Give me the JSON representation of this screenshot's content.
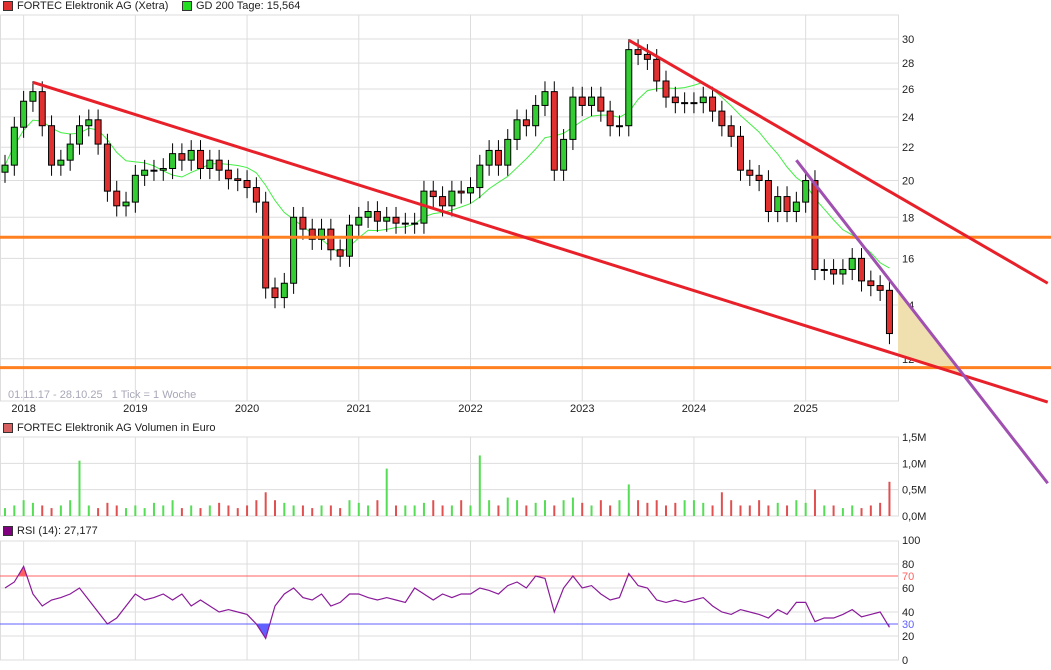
{
  "legend": {
    "price_label": "FORTEC Elektronik AG (Xetra)",
    "price_color": "#e03030",
    "ma_label": "GD 200 Tage: 15,564",
    "ma_color": "#22dd22",
    "volume_label": "FORTEC Elektronik AG Volumen in Euro",
    "volume_color": "#d86060",
    "rsi_label": "RSI (14): 27,177",
    "rsi_color": "#800080"
  },
  "range_info": "01.11.17 - 28.10.25   1 Tick = 1 Woche",
  "chart_data": [
    {
      "type": "candlestick",
      "scale": "log",
      "ylim": [
        11.5,
        31
      ],
      "grid": true,
      "yticks": [
        12,
        14,
        16,
        18,
        20,
        22,
        24,
        26,
        28,
        30
      ],
      "xtick_labels": [
        "2018",
        "2019",
        "2020",
        "2021",
        "2022",
        "2023",
        "2024",
        "2025"
      ],
      "dates": [
        "2017-11",
        "2017-12",
        "2018-01",
        "2018-02",
        "2018-03",
        "2018-04",
        "2018-05",
        "2018-06",
        "2018-07",
        "2018-08",
        "2018-09",
        "2018-10",
        "2018-11",
        "2018-12",
        "2019-01",
        "2019-02",
        "2019-03",
        "2019-04",
        "2019-05",
        "2019-06",
        "2019-07",
        "2019-08",
        "2019-09",
        "2019-10",
        "2019-11",
        "2019-12",
        "2020-01",
        "2020-02",
        "2020-03",
        "2020-04",
        "2020-05",
        "2020-06",
        "2020-07",
        "2020-08",
        "2020-09",
        "2020-10",
        "2020-11",
        "2020-12",
        "2021-01",
        "2021-02",
        "2021-03",
        "2021-04",
        "2021-05",
        "2021-06",
        "2021-07",
        "2021-08",
        "2021-09",
        "2021-10",
        "2021-11",
        "2021-12",
        "2022-01",
        "2022-02",
        "2022-03",
        "2022-04",
        "2022-05",
        "2022-06",
        "2022-07",
        "2022-08",
        "2022-09",
        "2022-10",
        "2022-11",
        "2022-12",
        "2023-01",
        "2023-02",
        "2023-03",
        "2023-04",
        "2023-05",
        "2023-06",
        "2023-07",
        "2023-08",
        "2023-09",
        "2023-10",
        "2023-11",
        "2023-12",
        "2024-01",
        "2024-02",
        "2024-03",
        "2024-04",
        "2024-05",
        "2024-06",
        "2024-07",
        "2024-08",
        "2024-09",
        "2024-10",
        "2024-11",
        "2024-12",
        "2025-01",
        "2025-02",
        "2025-03",
        "2025-04",
        "2025-05",
        "2025-06",
        "2025-07",
        "2025-08",
        "2025-09",
        "2025-10"
      ],
      "close": [
        20.9,
        23.3,
        25.1,
        25.8,
        23.4,
        20.9,
        21.2,
        22.2,
        23.4,
        23.8,
        22.2,
        19.4,
        18.6,
        18.8,
        20.3,
        20.6,
        20.6,
        20.7,
        21.6,
        21.2,
        21.8,
        20.7,
        21.2,
        20.6,
        20.1,
        20.0,
        19.6,
        18.8,
        14.7,
        14.3,
        14.9,
        18.0,
        17.4,
        16.9,
        17.4,
        16.4,
        16.1,
        17.6,
        18.0,
        18.3,
        17.8,
        18.0,
        17.7,
        17.7,
        17.7,
        19.4,
        19.1,
        18.6,
        19.4,
        19.3,
        19.6,
        20.9,
        21.8,
        20.9,
        22.5,
        23.8,
        23.4,
        24.8,
        25.8,
        20.6,
        22.5,
        25.4,
        24.8,
        25.4,
        24.4,
        23.4,
        23.4,
        29.1,
        28.7,
        28.3,
        26.6,
        25.4,
        25.0,
        25.0,
        25.0,
        25.4,
        24.4,
        23.4,
        22.7,
        20.6,
        20.3,
        20.0,
        18.3,
        19.1,
        18.3,
        18.8,
        20.0,
        15.5,
        15.5,
        15.3,
        15.5,
        16.0,
        15.0,
        14.8,
        14.6,
        12.9
      ],
      "ma_name": "GD 200 Tage",
      "ma_last": 15.564,
      "trendlines": [
        {
          "color": "#e8202a",
          "from": [
            "2018-02",
            26.5
          ],
          "to": [
            "2027-03",
            10.6
          ]
        },
        {
          "color": "#e8202a",
          "from": [
            "2023-06",
            29.9
          ],
          "to": [
            "2027-03",
            14.9
          ]
        },
        {
          "color": "#a050b0",
          "from": [
            "2024-12",
            21.2
          ],
          "to": [
            "2027-03",
            8.4
          ]
        }
      ],
      "horizontal_levels": [
        {
          "color": "#ff8020",
          "value": 17.0
        },
        {
          "color": "#ff8020",
          "value": 11.7
        }
      ],
      "shaded_triangle_color": "#f0e0b0"
    },
    {
      "type": "bar",
      "unit": "M",
      "ylim": [
        0,
        1.5
      ],
      "yticks": [
        "0,0M",
        "0,5M",
        "1,0M",
        "1,5M"
      ],
      "values": [
        0.15,
        0.2,
        0.3,
        0.25,
        0.2,
        0.15,
        0.2,
        0.3,
        1.05,
        0.2,
        0.15,
        0.25,
        0.2,
        0.15,
        0.2,
        0.15,
        0.25,
        0.2,
        0.3,
        0.15,
        0.2,
        0.15,
        0.2,
        0.25,
        0.2,
        0.15,
        0.2,
        0.3,
        0.45,
        0.3,
        0.25,
        0.2,
        0.2,
        0.15,
        0.2,
        0.2,
        0.15,
        0.3,
        0.25,
        0.2,
        0.3,
        0.9,
        0.2,
        0.2,
        0.2,
        0.25,
        0.3,
        0.2,
        0.2,
        0.3,
        0.2,
        1.15,
        0.3,
        0.2,
        0.35,
        0.3,
        0.2,
        0.25,
        0.3,
        0.2,
        0.3,
        0.35,
        0.25,
        0.2,
        0.3,
        0.2,
        0.3,
        0.6,
        0.3,
        0.25,
        0.3,
        0.2,
        0.25,
        0.3,
        0.3,
        0.25,
        0.2,
        0.45,
        0.3,
        0.2,
        0.2,
        0.3,
        0.2,
        0.25,
        0.2,
        0.3,
        0.25,
        0.5,
        0.2,
        0.2,
        0.15,
        0.2,
        0.15,
        0.2,
        0.25,
        0.65
      ]
    },
    {
      "type": "line",
      "ylim": [
        0,
        100
      ],
      "yticks": [
        0,
        20,
        40,
        60,
        80,
        100
      ],
      "overbought": 70,
      "oversold": 30,
      "overbought_color": "#ff6060",
      "oversold_color": "#6060ff",
      "values": [
        60,
        65,
        78,
        55,
        45,
        50,
        52,
        55,
        60,
        50,
        40,
        30,
        35,
        45,
        55,
        50,
        52,
        55,
        50,
        55,
        45,
        50,
        45,
        40,
        42,
        40,
        38,
        30,
        18,
        45,
        55,
        60,
        52,
        50,
        55,
        45,
        48,
        55,
        55,
        52,
        50,
        52,
        50,
        48,
        60,
        55,
        50,
        55,
        52,
        55,
        55,
        60,
        58,
        55,
        62,
        65,
        60,
        70,
        68,
        40,
        60,
        70,
        60,
        62,
        55,
        50,
        52,
        72,
        62,
        60,
        50,
        48,
        50,
        48,
        50,
        52,
        45,
        40,
        38,
        42,
        40,
        38,
        35,
        42,
        38,
        48,
        48,
        32,
        35,
        35,
        38,
        42,
        36,
        38,
        40,
        27.2
      ]
    }
  ]
}
